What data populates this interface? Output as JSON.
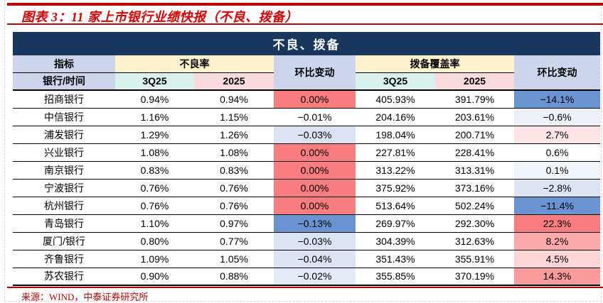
{
  "title": "图表 3：11 家上市银行业绩快报（不良、拨备）",
  "table": {
    "banner": "不良、拨备",
    "header": {
      "indicator": "指标",
      "bank_time": "银行/时间",
      "npl_ratio_group": "不良率",
      "coverage_ratio_group": "拨备覆盖率",
      "qoq_change_left": "环比变动",
      "qoq_change_right": "环比变动",
      "periods": [
        "3Q25",
        "2025"
      ]
    },
    "rows": [
      {
        "bank": "招商银行",
        "npl_3q25": "0.94%",
        "npl_2025": "0.94%",
        "npl_qoq": "0.00%",
        "cov_3q25": "405.93%",
        "cov_2025": "391.79%",
        "cov_qoq": "−14.1%"
      },
      {
        "bank": "中信银行",
        "npl_3q25": "1.16%",
        "npl_2025": "1.15%",
        "npl_qoq": "−0.01%",
        "cov_3q25": "204.16%",
        "cov_2025": "203.61%",
        "cov_qoq": "−0.6%"
      },
      {
        "bank": "浦发银行",
        "npl_3q25": "1.29%",
        "npl_2025": "1.26%",
        "npl_qoq": "−0.03%",
        "cov_3q25": "198.04%",
        "cov_2025": "200.71%",
        "cov_qoq": "2.7%"
      },
      {
        "bank": "兴业银行",
        "npl_3q25": "1.08%",
        "npl_2025": "1.08%",
        "npl_qoq": "0.00%",
        "cov_3q25": "227.81%",
        "cov_2025": "228.41%",
        "cov_qoq": "0.6%"
      },
      {
        "bank": "南京银行",
        "npl_3q25": "0.83%",
        "npl_2025": "0.83%",
        "npl_qoq": "0.00%",
        "cov_3q25": "313.22%",
        "cov_2025": "313.31%",
        "cov_qoq": "0.1%"
      },
      {
        "bank": "宁波银行",
        "npl_3q25": "0.76%",
        "npl_2025": "0.76%",
        "npl_qoq": "0.00%",
        "cov_3q25": "375.92%",
        "cov_2025": "373.16%",
        "cov_qoq": "−2.8%"
      },
      {
        "bank": "杭州银行",
        "npl_3q25": "0.76%",
        "npl_2025": "0.76%",
        "npl_qoq": "0.00%",
        "cov_3q25": "513.64%",
        "cov_2025": "502.24%",
        "cov_qoq": "−11.4%"
      },
      {
        "bank": "青岛银行",
        "npl_3q25": "1.10%",
        "npl_2025": "0.97%",
        "npl_qoq": "−0.13%",
        "cov_3q25": "269.97%",
        "cov_2025": "292.30%",
        "cov_qoq": "22.3%"
      },
      {
        "bank": "厦门/银行",
        "npl_3q25": "0.80%",
        "npl_2025": "0.77%",
        "npl_qoq": "−0.03%",
        "cov_3q25": "304.39%",
        "cov_2025": "312.63%",
        "cov_qoq": "8.2%"
      },
      {
        "bank": "齐鲁银行",
        "npl_3q25": "1.09%",
        "npl_2025": "1.05%",
        "npl_qoq": "−0.04%",
        "cov_3q25": "351.43%",
        "cov_2025": "355.91%",
        "cov_qoq": "4.5%"
      },
      {
        "bank": "苏农银行",
        "npl_3q25": "0.90%",
        "npl_2025": "0.88%",
        "npl_qoq": "−0.02%",
        "cov_3q25": "355.85%",
        "cov_2025": "370.19%",
        "cov_qoq": "14.3%"
      }
    ]
  },
  "source": "来源：WIND，中泰证券研究所",
  "colors": {
    "accent_red": "#C00000",
    "title_red": "#DD0000",
    "banner_navy": "#17375E",
    "header_lavender": "#CDD5EA",
    "header_yellow": "#FFF2CC",
    "header_cyan": "#D8F1EC",
    "header_pink": "#F9DBDE",
    "cell_strong_red": "#F97D7E",
    "cell_medium_blue": "#6A93D2",
    "cell_light_blue": "#DCE4F3",
    "cell_medium_pink": "#FBA9AB",
    "cell_light_pink": "#FCD6D7"
  }
}
